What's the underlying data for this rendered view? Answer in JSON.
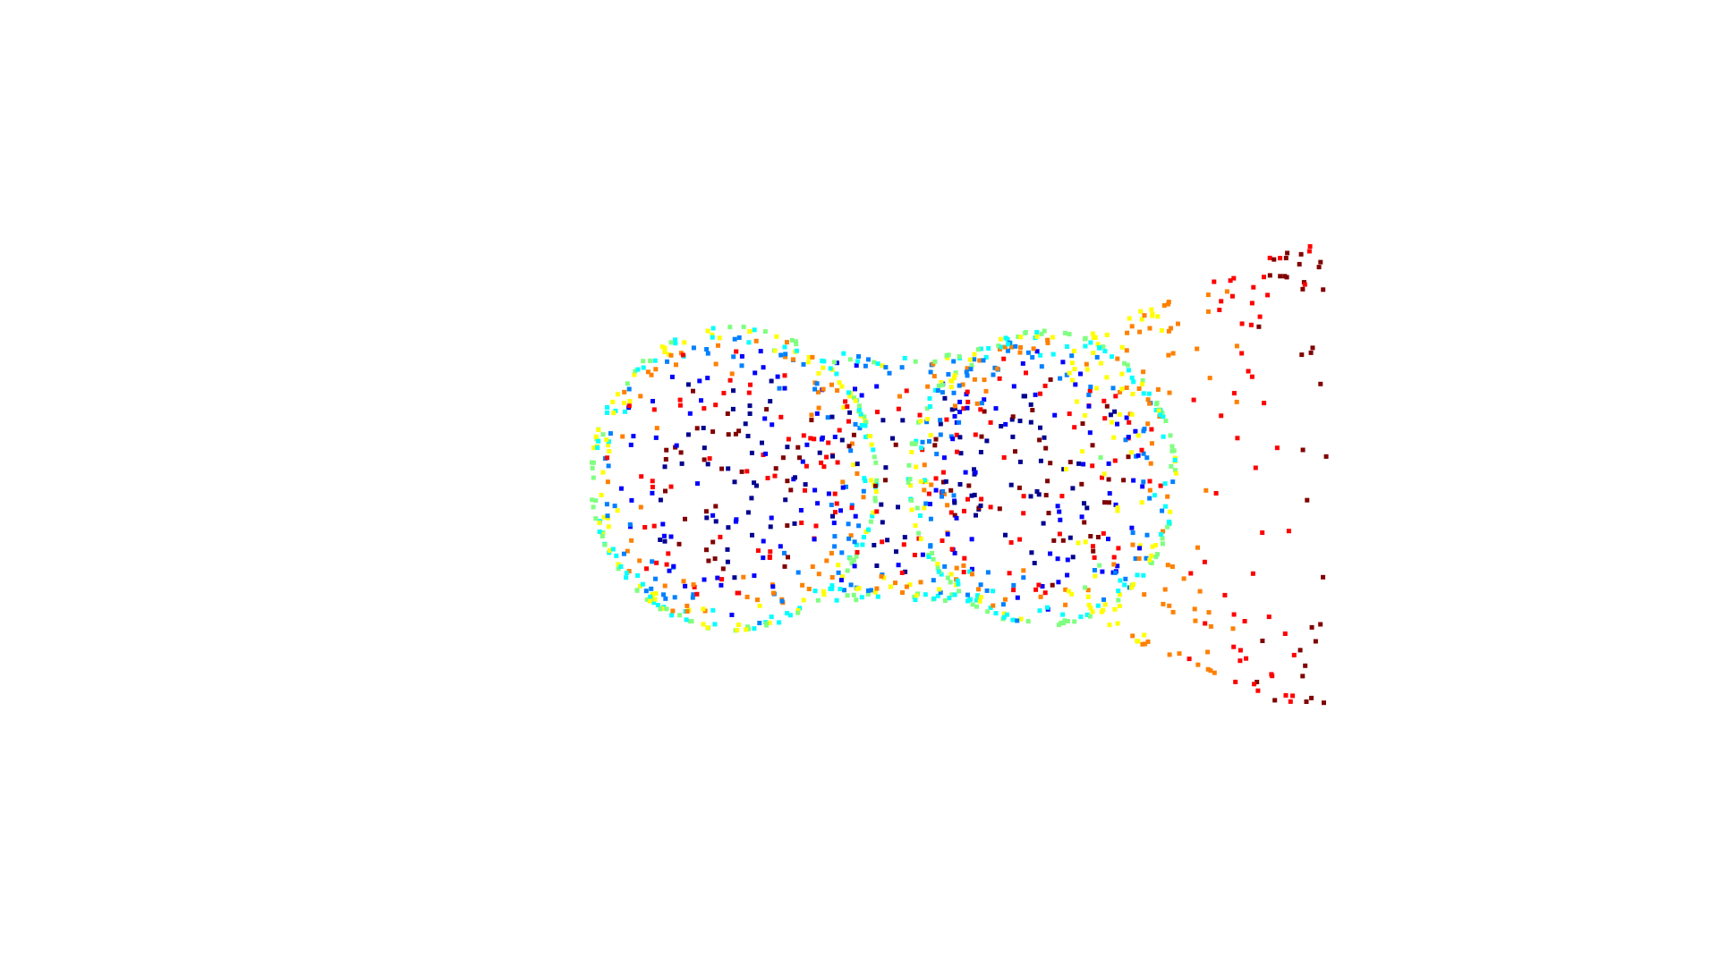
{
  "scene": {
    "kind": "3d-point-cloud",
    "description_visible": "",
    "background_color": "#ffffff",
    "marker_shape": "square",
    "colormap": "jet",
    "colormap_stops": [
      "#00008f",
      "#0000ff",
      "#0080ff",
      "#00ffff",
      "#80ff80",
      "#ffff00",
      "#ff8000",
      "#ff0000",
      "#800000"
    ],
    "object_shape": "dumbbell",
    "components": [
      "left-lobe",
      "neck",
      "right-lobe",
      "right-flared-end"
    ],
    "axes_visible": false,
    "grid_visible": false,
    "legend_visible": false,
    "title": ""
  }
}
